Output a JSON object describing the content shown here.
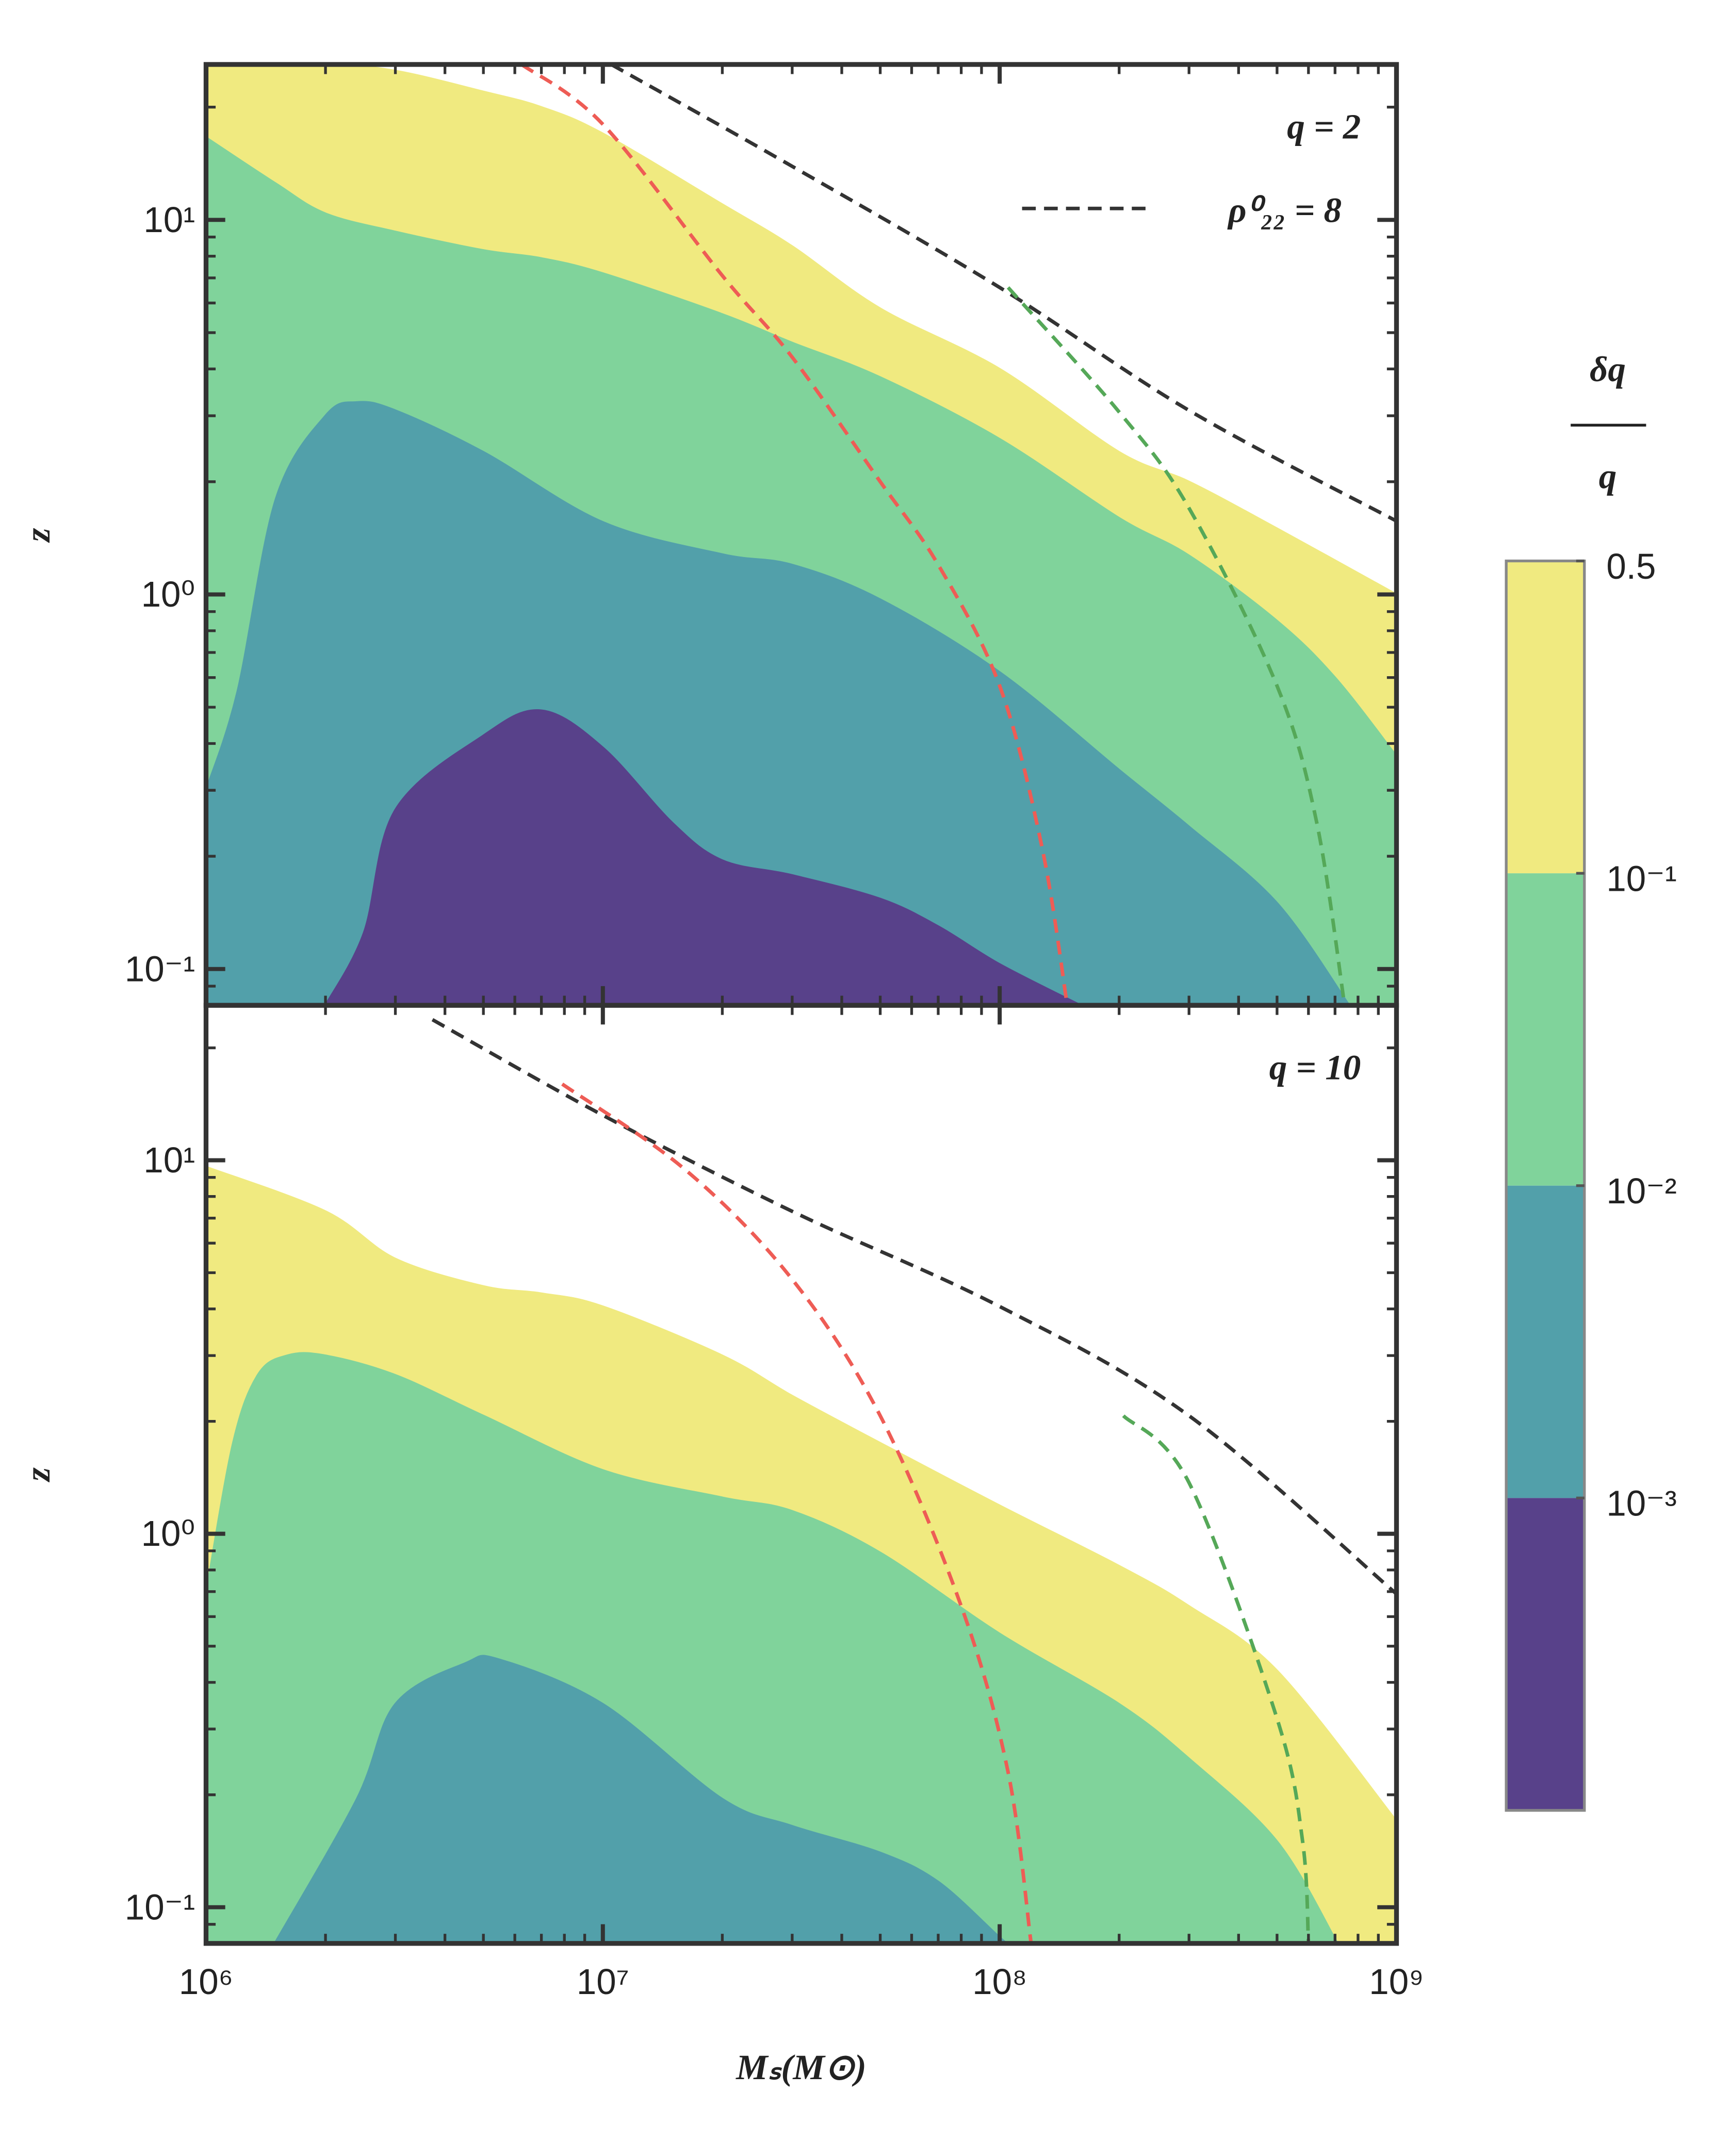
{
  "chart_data": [
    {
      "type": "contourf",
      "title": "q = 2",
      "ylabel": "z",
      "xscale": "log",
      "yscale": "log",
      "xlim": [
        1000000.0,
        1000000000.0
      ],
      "ylim": [
        0.08,
        26
      ],
      "yticks": [
        {
          "value": 10,
          "label": "10¹"
        },
        {
          "value": 1,
          "label": "10⁰"
        },
        {
          "value": 0.1,
          "label": "10⁻¹"
        }
      ],
      "legend": "upper right",
      "series": [
        {
          "style": "filled",
          "color": "#f0ea80",
          "x": [
            1000000.0,
            2000000.0,
            3000000.0,
            5000000.0,
            7000000.0,
            10000000.0,
            20000000.0,
            30000000.0,
            50000000.0,
            100000000.0,
            200000000.0,
            300000000.0,
            500000000.0,
            1000000000.0
          ],
          "values": [
            26,
            26,
            25,
            22,
            20,
            17,
            11,
            8.5,
            5.8,
            4,
            2.4,
            2.0,
            1.5,
            1.0
          ]
        },
        {
          "style": "filled",
          "color": "#80d39b",
          "x": [
            1000000.0,
            1500000.0,
            2000000.0,
            3000000.0,
            5000000.0,
            7000000.0,
            10000000.0,
            20000000.0,
            30000000.0,
            50000000.0,
            100000000.0,
            200000000.0,
            300000000.0,
            500000000.0,
            700000000.0,
            1000000000.0
          ],
          "values": [
            16.6,
            12.5,
            10.4,
            9.3,
            8.3,
            7.9,
            7.2,
            5.6,
            4.7,
            3.8,
            2.6,
            1.6,
            1.27,
            0.85,
            0.6,
            0.37
          ]
        },
        {
          "style": "filled",
          "color": "#52a0aa",
          "x": [
            1000000.0,
            1200000.0,
            1500000.0,
            2000000.0,
            2400000.0,
            3000000.0,
            5000000.0,
            10000000.0,
            20000000.0,
            30000000.0,
            50000000.0,
            100000000.0,
            200000000.0,
            300000000.0,
            500000000.0,
            760000000.0
          ],
          "values": [
            0.3,
            0.55,
            1.8,
            3.0,
            3.26,
            3.1,
            2.4,
            1.56,
            1.28,
            1.2,
            0.97,
            0.62,
            0.34,
            0.24,
            0.15,
            0.08
          ]
        },
        {
          "style": "filled",
          "color": "#58418a",
          "x": [
            2000000.0,
            2500000.0,
            3000000.0,
            5000000.0,
            7000000.0,
            10000000.0,
            15000000.0,
            20000000.0,
            30000000.0,
            50000000.0,
            70000000.0,
            100000000.0,
            160000000.0
          ],
          "values": [
            0.08,
            0.125,
            0.266,
            0.42,
            0.49,
            0.39,
            0.245,
            0.195,
            0.178,
            0.154,
            0.13,
            0.103,
            0.08
          ]
        },
        {
          "style": "dashed",
          "color": "#333333",
          "name": "ρ⁰₂₂ = 8",
          "x": [
            10500000.0,
            30000000.0,
            100000000.0,
            300000000.0,
            1000000000.0
          ],
          "values": [
            26,
            13.9,
            6.6,
            3.1,
            1.57
          ]
        },
        {
          "style": "dashed",
          "color": "#ee5c55",
          "x": [
            6240000.0,
            10000000.0,
            20000000.0,
            30000000.0,
            50000000.0,
            70000000.0,
            100000000.0,
            128000000.0,
            148000000.0
          ],
          "values": [
            26,
            18,
            7.1,
            4.3,
            2.0,
            1.2,
            0.57,
            0.21,
            0.08
          ]
        },
        {
          "style": "dashed",
          "color": "#55a858",
          "x": [
            105000000.0,
            200000000.0,
            300000000.0,
            500000000.0,
            630000000.0,
            740000000.0
          ],
          "values": [
            6.6,
            3.07,
            1.7,
            0.57,
            0.245,
            0.08
          ]
        }
      ]
    },
    {
      "type": "contourf",
      "title": "q = 10",
      "ylabel": "z",
      "xlabel": "Mₛ(M⊙)",
      "xscale": "log",
      "yscale": "log",
      "xlim": [
        1000000.0,
        1000000000.0
      ],
      "ylim": [
        0.08,
        26
      ],
      "xticks": [
        {
          "value": 1000000.0,
          "label": "10⁶"
        },
        {
          "value": 10000000.0,
          "label": "10⁷"
        },
        {
          "value": 100000000.0,
          "label": "10⁸"
        },
        {
          "value": 1000000000.0,
          "label": "10⁹"
        }
      ],
      "yticks": [
        {
          "value": 10,
          "label": "10¹"
        },
        {
          "value": 1,
          "label": "10⁰"
        },
        {
          "value": 0.1,
          "label": "10⁻¹"
        }
      ],
      "series": [
        {
          "style": "filled",
          "color": "#f0ea80",
          "x": [
            1000000.0,
            2000000.0,
            3000000.0,
            5000000.0,
            7000000.0,
            10000000.0,
            20000000.0,
            30000000.0,
            50000000.0,
            100000000.0,
            200000000.0,
            300000000.0,
            500000000.0,
            1000000000.0
          ],
          "values": [
            9.6,
            7.3,
            5.45,
            4.6,
            4.4,
            4.06,
            3.0,
            2.34,
            1.75,
            1.19,
            0.82,
            0.64,
            0.43,
            0.17
          ]
        },
        {
          "style": "filled",
          "color": "#80d39b",
          "x": [
            1000000.0,
            1170000.0,
            1350000.0,
            1600000.0,
            2000000.0,
            3000000.0,
            5000000.0,
            10000000.0,
            20000000.0,
            30000000.0,
            50000000.0,
            100000000.0,
            200000000.0,
            300000000.0,
            500000000.0,
            710000000.0
          ],
          "values": [
            0.69,
            1.75,
            2.66,
            3.0,
            3.0,
            2.66,
            2.07,
            1.48,
            1.25,
            1.15,
            0.89,
            0.54,
            0.35,
            0.25,
            0.15,
            0.08
          ]
        },
        {
          "style": "filled",
          "color": "#52a0aa",
          "x": [
            1490000.0,
            2400000.0,
            3000000.0,
            4500000.0,
            5500000.0,
            10000000.0,
            20000000.0,
            30000000.0,
            50000000.0,
            70000000.0,
            100000000.0,
            105000000.0
          ],
          "values": [
            0.08,
            0.195,
            0.35,
            0.45,
            0.46,
            0.35,
            0.195,
            0.165,
            0.14,
            0.117,
            0.083,
            0.08
          ]
        },
        {
          "style": "dashed",
          "color": "#333333",
          "x": [
            3720000.0,
            10000000.0,
            30000000.0,
            100000000.0,
            300000000.0,
            1000000000.0
          ],
          "values": [
            23.8,
            13.2,
            7.3,
            4.06,
            2.07,
            0.69
          ]
        },
        {
          "style": "dashed",
          "color": "#ee5c55",
          "x": [
            7900000.0,
            16200000.0,
            30000000.0,
            50000000.0,
            80000000.0,
            105000000.0,
            120000000.0
          ],
          "values": [
            16,
            9.4,
            4.8,
            2.07,
            0.64,
            0.23,
            0.08
          ]
        },
        {
          "style": "dashed",
          "color": "#55a858",
          "x": [
            205000000.0,
            300000000.0,
            500000000.0,
            580000000.0,
            600000000.0
          ],
          "values": [
            2.07,
            1.37,
            0.32,
            0.15,
            0.08
          ]
        }
      ]
    }
  ],
  "colorbar": {
    "label_numerator": "δq",
    "label_denominator": "q",
    "colors": [
      "#f0ea80",
      "#80d39b",
      "#52a0aa",
      "#58418a"
    ],
    "ticks": [
      0.5,
      {
        "value": 0.1,
        "label": "10⁻¹"
      },
      {
        "value": 0.01,
        "label": "10⁻²"
      },
      {
        "value": 0.001,
        "label": "10⁻³"
      }
    ]
  }
}
